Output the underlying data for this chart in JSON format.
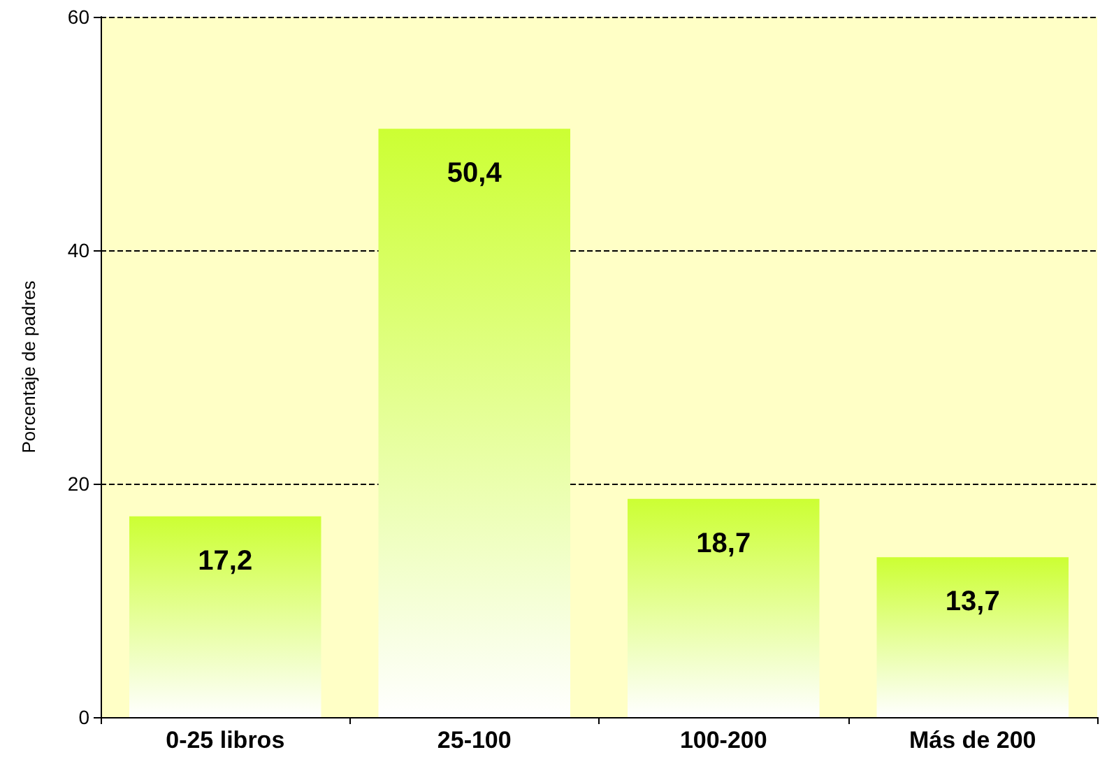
{
  "chart_data": {
    "type": "bar",
    "ylabel": "Porcentaje de padres",
    "categories": [
      "0-25 libros",
      "25-100",
      "100-200",
      "Más de 200"
    ],
    "values": [
      17.2,
      50.4,
      18.7,
      13.7
    ],
    "value_labels": [
      "17,2",
      "50,4",
      "18,7",
      "13,7"
    ],
    "color": "#ccff33",
    "ylim": [
      0,
      60
    ],
    "yticks": [
      0,
      20,
      40,
      60
    ],
    "grid": "y"
  }
}
